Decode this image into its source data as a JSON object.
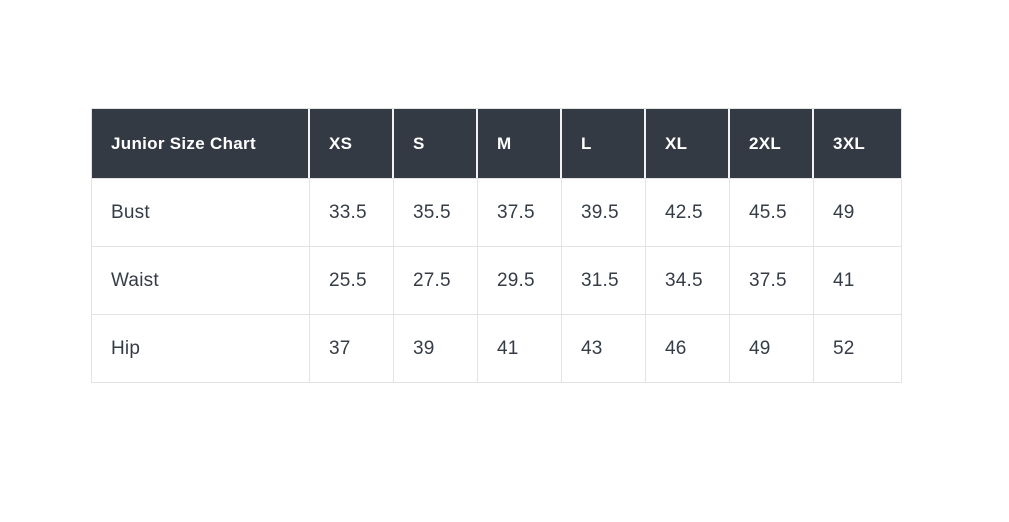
{
  "page": {
    "background_color": "#FFFFFF"
  },
  "table": {
    "header": [
      "Junior Size Chart",
      "XS",
      "S",
      "M",
      "L",
      "XL",
      "2XL",
      "3XL"
    ],
    "rows": [
      {
        "label": "Bust",
        "values": [
          "33.5",
          "35.5",
          "37.5",
          "39.5",
          "42.5",
          "45.5",
          "49"
        ]
      },
      {
        "label": "Waist",
        "values": [
          "25.5",
          "27.5",
          "29.5",
          "31.5",
          "34.5",
          "37.5",
          "41"
        ]
      },
      {
        "label": "Hip",
        "values": [
          "37",
          "39",
          "41",
          "43",
          "46",
          "49",
          "52"
        ]
      }
    ],
    "colors": {
      "header_background": "#343A44",
      "header_text": "#FFFFFF",
      "body_text": "#363C46",
      "grid_border": "#E3E3E3",
      "header_separator": "#F2F2F2"
    }
  },
  "chart_data": {
    "type": "table",
    "title": "Junior Size Chart",
    "categories": [
      "XS",
      "S",
      "M",
      "L",
      "XL",
      "2XL",
      "3XL"
    ],
    "series": [
      {
        "name": "Bust",
        "values": [
          33.5,
          35.5,
          37.5,
          39.5,
          42.5,
          45.5,
          49
        ]
      },
      {
        "name": "Waist",
        "values": [
          25.5,
          27.5,
          29.5,
          31.5,
          34.5,
          37.5,
          41
        ]
      },
      {
        "name": "Hip",
        "values": [
          37,
          39,
          41,
          43,
          46,
          49,
          52
        ]
      }
    ],
    "layout": {
      "grid": "on",
      "header_style": "dark-row",
      "value_alignment": "left"
    }
  }
}
